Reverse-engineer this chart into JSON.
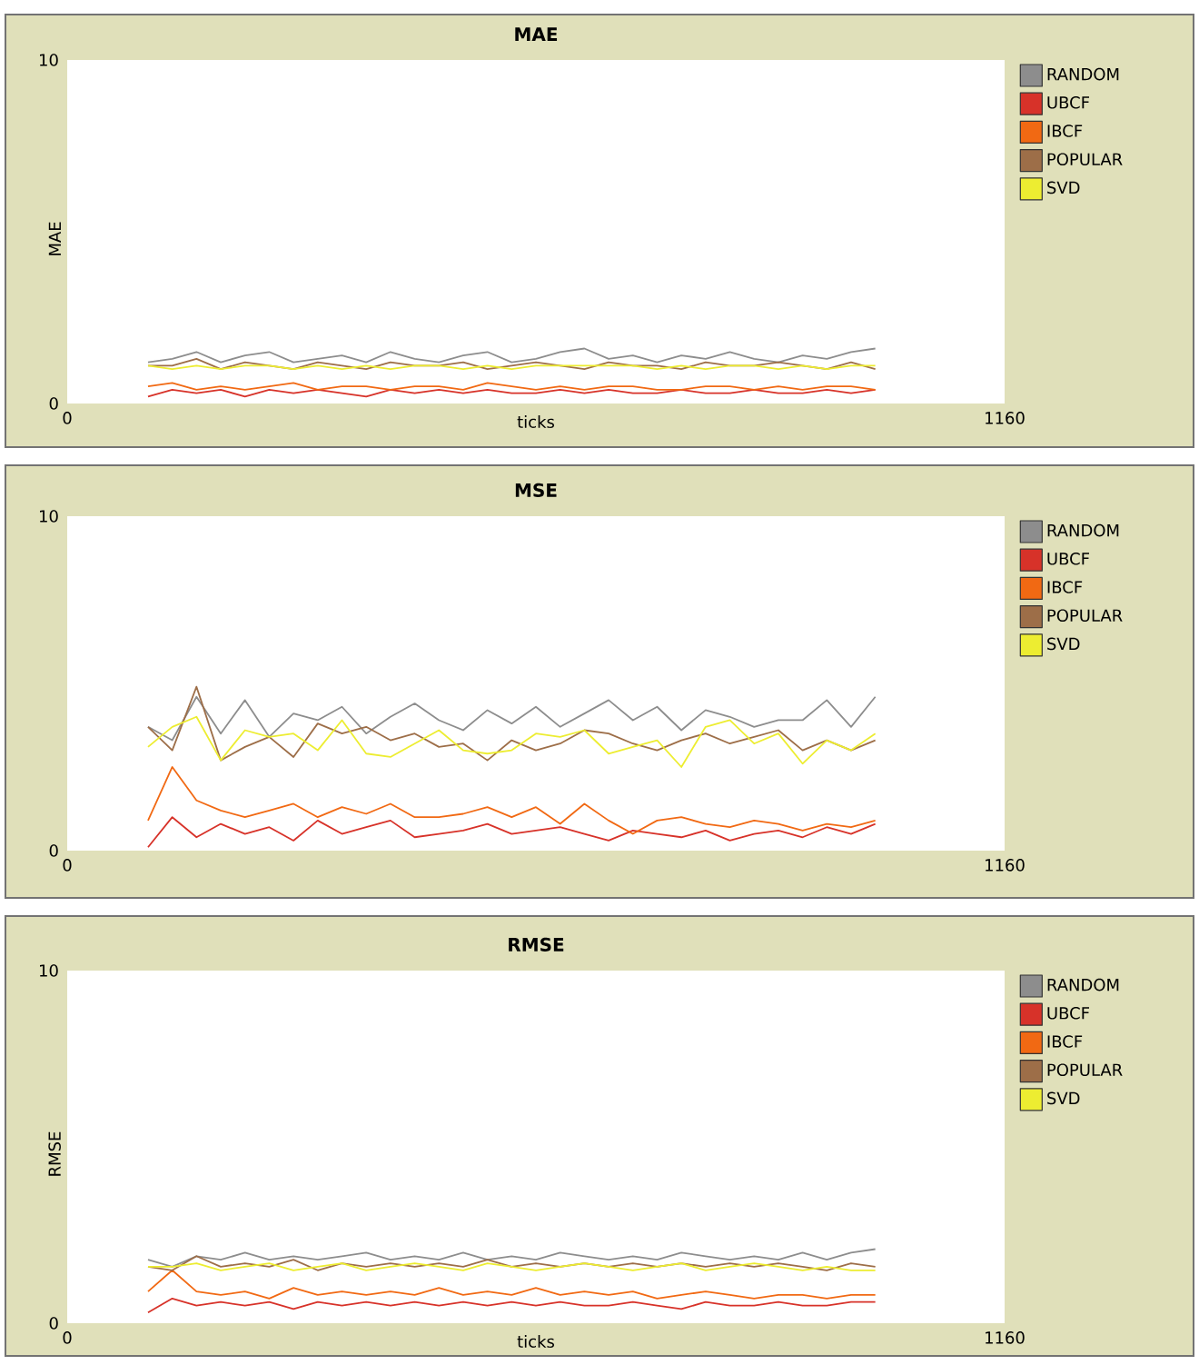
{
  "chart_data": [
    {
      "type": "line",
      "title": "MAE",
      "xlabel": "ticks",
      "ylabel": "MAE",
      "xlim": [
        0,
        1160
      ],
      "ylim": [
        0,
        10
      ],
      "xticks": [
        0,
        1160
      ],
      "yticks": [
        0,
        10
      ],
      "legend": "right",
      "x": [
        100,
        130,
        160,
        190,
        220,
        250,
        280,
        310,
        340,
        370,
        400,
        430,
        460,
        490,
        520,
        550,
        580,
        610,
        640,
        670,
        700,
        730,
        760,
        790,
        820,
        850,
        880,
        910,
        940,
        970,
        1000
      ],
      "series": [
        {
          "name": "RANDOM",
          "color": "#8d8d8d",
          "values": [
            1.2,
            1.3,
            1.5,
            1.2,
            1.4,
            1.5,
            1.2,
            1.3,
            1.4,
            1.2,
            1.5,
            1.3,
            1.2,
            1.4,
            1.5,
            1.2,
            1.3,
            1.5,
            1.6,
            1.3,
            1.4,
            1.2,
            1.4,
            1.3,
            1.5,
            1.3,
            1.2,
            1.4,
            1.3,
            1.5,
            1.6
          ]
        },
        {
          "name": "UBCF",
          "color": "#d73229",
          "values": [
            0.2,
            0.4,
            0.3,
            0.4,
            0.2,
            0.4,
            0.3,
            0.4,
            0.3,
            0.2,
            0.4,
            0.3,
            0.4,
            0.3,
            0.4,
            0.3,
            0.3,
            0.4,
            0.3,
            0.4,
            0.3,
            0.3,
            0.4,
            0.3,
            0.3,
            0.4,
            0.3,
            0.3,
            0.4,
            0.3,
            0.4
          ]
        },
        {
          "name": "IBCF",
          "color": "#f16913",
          "values": [
            0.5,
            0.6,
            0.4,
            0.5,
            0.4,
            0.5,
            0.6,
            0.4,
            0.5,
            0.5,
            0.4,
            0.5,
            0.5,
            0.4,
            0.6,
            0.5,
            0.4,
            0.5,
            0.4,
            0.5,
            0.5,
            0.4,
            0.4,
            0.5,
            0.5,
            0.4,
            0.5,
            0.4,
            0.5,
            0.5,
            0.4
          ]
        },
        {
          "name": "POPULAR",
          "color": "#9d6e48",
          "values": [
            1.1,
            1.1,
            1.3,
            1.0,
            1.2,
            1.1,
            1.0,
            1.2,
            1.1,
            1.0,
            1.2,
            1.1,
            1.1,
            1.2,
            1.0,
            1.1,
            1.2,
            1.1,
            1.0,
            1.2,
            1.1,
            1.1,
            1.0,
            1.2,
            1.1,
            1.1,
            1.2,
            1.1,
            1.0,
            1.2,
            1.0
          ]
        },
        {
          "name": "SVD",
          "color": "#eded31",
          "values": [
            1.1,
            1.0,
            1.1,
            1.0,
            1.1,
            1.1,
            1.0,
            1.1,
            1.0,
            1.1,
            1.0,
            1.1,
            1.1,
            1.0,
            1.1,
            1.0,
            1.1,
            1.1,
            1.1,
            1.1,
            1.1,
            1.0,
            1.1,
            1.0,
            1.1,
            1.1,
            1.0,
            1.1,
            1.0,
            1.1,
            1.1
          ]
        }
      ]
    },
    {
      "type": "line",
      "title": "MSE",
      "xlim": [
        0,
        1160
      ],
      "ylim": [
        0,
        10
      ],
      "xticks": [
        0,
        1160
      ],
      "yticks": [
        0,
        10
      ],
      "legend": "right",
      "x": [
        100,
        130,
        160,
        190,
        220,
        250,
        280,
        310,
        340,
        370,
        400,
        430,
        460,
        490,
        520,
        550,
        580,
        610,
        640,
        670,
        700,
        730,
        760,
        790,
        820,
        850,
        880,
        910,
        940,
        970,
        1000
      ],
      "series": [
        {
          "name": "RANDOM",
          "color": "#8d8d8d",
          "values": [
            3.7,
            3.3,
            4.6,
            3.5,
            4.5,
            3.4,
            4.1,
            3.9,
            4.3,
            3.5,
            4.0,
            4.4,
            3.9,
            3.6,
            4.2,
            3.8,
            4.3,
            3.7,
            4.1,
            4.5,
            3.9,
            4.3,
            3.6,
            4.2,
            4.0,
            3.7,
            3.9,
            3.9,
            4.5,
            3.7,
            4.6
          ]
        },
        {
          "name": "UBCF",
          "color": "#d73229",
          "values": [
            0.1,
            1.0,
            0.4,
            0.8,
            0.5,
            0.7,
            0.3,
            0.9,
            0.5,
            0.7,
            0.9,
            0.4,
            0.5,
            0.6,
            0.8,
            0.5,
            0.6,
            0.7,
            0.5,
            0.3,
            0.6,
            0.5,
            0.4,
            0.6,
            0.3,
            0.5,
            0.6,
            0.4,
            0.7,
            0.5,
            0.8
          ]
        },
        {
          "name": "IBCF",
          "color": "#f16913",
          "values": [
            0.9,
            2.5,
            1.5,
            1.2,
            1.0,
            1.2,
            1.4,
            1.0,
            1.3,
            1.1,
            1.4,
            1.0,
            1.0,
            1.1,
            1.3,
            1.0,
            1.3,
            0.8,
            1.4,
            0.9,
            0.5,
            0.9,
            1.0,
            0.8,
            0.7,
            0.9,
            0.8,
            0.6,
            0.8,
            0.7,
            0.9
          ]
        },
        {
          "name": "POPULAR",
          "color": "#9d6e48",
          "values": [
            3.7,
            3.0,
            4.9,
            2.7,
            3.1,
            3.4,
            2.8,
            3.8,
            3.5,
            3.7,
            3.3,
            3.5,
            3.1,
            3.2,
            2.7,
            3.3,
            3.0,
            3.2,
            3.6,
            3.5,
            3.2,
            3.0,
            3.3,
            3.5,
            3.2,
            3.4,
            3.6,
            3.0,
            3.3,
            3.0,
            3.3
          ]
        },
        {
          "name": "SVD",
          "color": "#eded31",
          "values": [
            3.1,
            3.7,
            4.0,
            2.7,
            3.6,
            3.4,
            3.5,
            3.0,
            3.9,
            2.9,
            2.8,
            3.2,
            3.6,
            3.0,
            2.9,
            3.0,
            3.5,
            3.4,
            3.6,
            2.9,
            3.1,
            3.3,
            2.5,
            3.7,
            3.9,
            3.2,
            3.5,
            2.6,
            3.3,
            3.0,
            3.5
          ]
        }
      ]
    },
    {
      "type": "line",
      "title": "RMSE",
      "xlabel": "ticks",
      "ylabel": "RMSE",
      "xlim": [
        0,
        1160
      ],
      "ylim": [
        0,
        10
      ],
      "xticks": [
        0,
        1160
      ],
      "yticks": [
        0,
        10
      ],
      "legend": "right",
      "x": [
        100,
        130,
        160,
        190,
        220,
        250,
        280,
        310,
        340,
        370,
        400,
        430,
        460,
        490,
        520,
        550,
        580,
        610,
        640,
        670,
        700,
        730,
        760,
        790,
        820,
        850,
        880,
        910,
        940,
        970,
        1000
      ],
      "series": [
        {
          "name": "RANDOM",
          "color": "#8d8d8d",
          "values": [
            1.8,
            1.6,
            1.9,
            1.8,
            2.0,
            1.8,
            1.9,
            1.8,
            1.9,
            2.0,
            1.8,
            1.9,
            1.8,
            2.0,
            1.8,
            1.9,
            1.8,
            2.0,
            1.9,
            1.8,
            1.9,
            1.8,
            2.0,
            1.9,
            1.8,
            1.9,
            1.8,
            2.0,
            1.8,
            2.0,
            2.1
          ]
        },
        {
          "name": "UBCF",
          "color": "#d73229",
          "values": [
            0.3,
            0.7,
            0.5,
            0.6,
            0.5,
            0.6,
            0.4,
            0.6,
            0.5,
            0.6,
            0.5,
            0.6,
            0.5,
            0.6,
            0.5,
            0.6,
            0.5,
            0.6,
            0.5,
            0.5,
            0.6,
            0.5,
            0.4,
            0.6,
            0.5,
            0.5,
            0.6,
            0.5,
            0.5,
            0.6,
            0.6
          ]
        },
        {
          "name": "IBCF",
          "color": "#f16913",
          "values": [
            0.9,
            1.5,
            0.9,
            0.8,
            0.9,
            0.7,
            1.0,
            0.8,
            0.9,
            0.8,
            0.9,
            0.8,
            1.0,
            0.8,
            0.9,
            0.8,
            1.0,
            0.8,
            0.9,
            0.8,
            0.9,
            0.7,
            0.8,
            0.9,
            0.8,
            0.7,
            0.8,
            0.8,
            0.7,
            0.8,
            0.8
          ]
        },
        {
          "name": "POPULAR",
          "color": "#9d6e48",
          "values": [
            1.6,
            1.5,
            1.9,
            1.6,
            1.7,
            1.6,
            1.8,
            1.5,
            1.7,
            1.6,
            1.7,
            1.6,
            1.7,
            1.6,
            1.8,
            1.6,
            1.7,
            1.6,
            1.7,
            1.6,
            1.7,
            1.6,
            1.7,
            1.6,
            1.7,
            1.6,
            1.7,
            1.6,
            1.5,
            1.7,
            1.6
          ]
        },
        {
          "name": "SVD",
          "color": "#eded31",
          "values": [
            1.6,
            1.6,
            1.7,
            1.5,
            1.6,
            1.7,
            1.5,
            1.6,
            1.7,
            1.5,
            1.6,
            1.7,
            1.6,
            1.5,
            1.7,
            1.6,
            1.5,
            1.6,
            1.7,
            1.6,
            1.5,
            1.6,
            1.7,
            1.5,
            1.6,
            1.7,
            1.6,
            1.5,
            1.6,
            1.5,
            1.5
          ]
        }
      ]
    }
  ]
}
